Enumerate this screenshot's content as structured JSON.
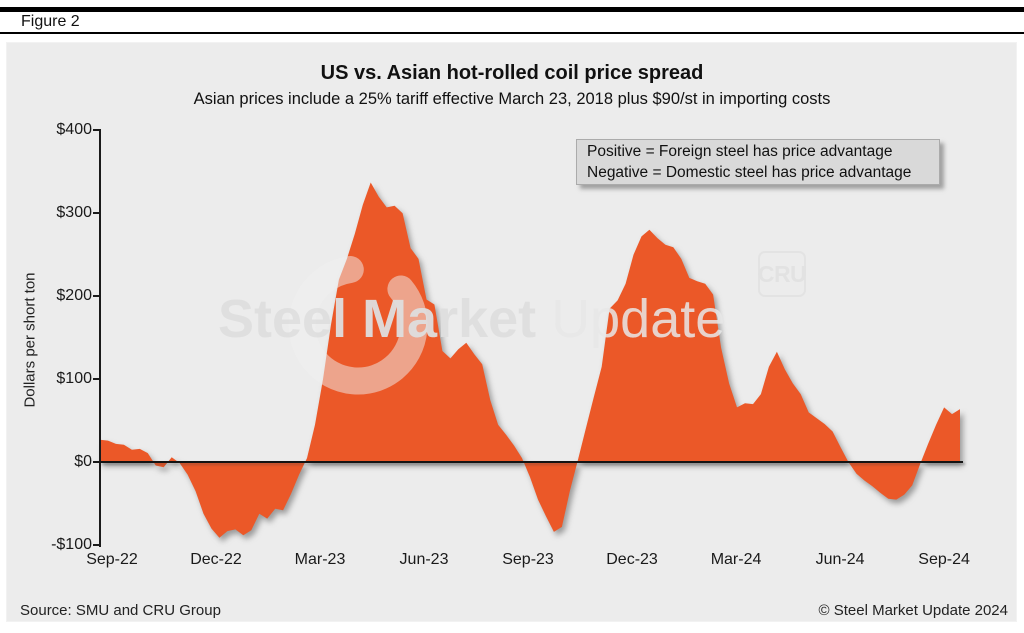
{
  "figure_label": "Figure 2",
  "chart": {
    "title": "US vs. Asian hot-rolled coil price spread",
    "subtitle": "Asian prices include a 25% tariff effective March 23, 2018 plus $90/st in importing costs",
    "ylabel": "Dollars per short ton",
    "annotation_line1": "Positive = Foreign steel has price advantage",
    "annotation_line2": "Negative = Domestic steel has price advantage"
  },
  "watermark": {
    "bold_part": "Steel Market ",
    "light_part": "Update",
    "badge": "CRU"
  },
  "footer": {
    "source": "Source: SMU and CRU Group",
    "copyright": "© Steel Market Update 2024"
  },
  "colors": {
    "area": "#EB5828",
    "panel_bg": "#ECECEC",
    "annotation_bg": "#D9D9D9",
    "axis": "#1a1a1a"
  },
  "chart_data": {
    "type": "area",
    "title": "US vs. Asian hot-rolled coil price spread",
    "subtitle": "Asian prices include a 25% tariff effective March 23, 2018 plus $90/st in importing costs",
    "xlabel": "",
    "ylabel": "Dollars per short ton",
    "ylim": [
      -100,
      400
    ],
    "baseline": 0,
    "grid": false,
    "legend": null,
    "frequency": "weekly",
    "x_range": [
      "late Aug 2022",
      "mid Oct 2024"
    ],
    "y_ticks": [
      {
        "label": "$400",
        "value": 400
      },
      {
        "label": "$300",
        "value": 300
      },
      {
        "label": "$200",
        "value": 200
      },
      {
        "label": "$100",
        "value": 100
      },
      {
        "label": "$0",
        "value": 0
      },
      {
        "label": "-$100",
        "value": -100
      }
    ],
    "x_ticks": [
      {
        "label": "Sep-22",
        "month_offset": 0
      },
      {
        "label": "Dec-22",
        "month_offset": 3
      },
      {
        "label": "Mar-23",
        "month_offset": 6
      },
      {
        "label": "Jun-23",
        "month_offset": 9
      },
      {
        "label": "Sep-23",
        "month_offset": 12
      },
      {
        "label": "Dec-23",
        "month_offset": 15
      },
      {
        "label": "Mar-24",
        "month_offset": 18
      },
      {
        "label": "Jun-24",
        "month_offset": 21
      },
      {
        "label": "Sep-24",
        "month_offset": 24
      }
    ],
    "values": [
      27,
      26,
      22,
      21,
      15,
      16,
      11,
      -4,
      -6,
      6,
      -1,
      -15,
      -35,
      -62,
      -80,
      -91,
      -83,
      -81,
      -88,
      -82,
      -62,
      -68,
      -56,
      -58,
      -38,
      -15,
      5,
      45,
      100,
      165,
      220,
      245,
      275,
      310,
      337,
      320,
      307,
      309,
      300,
      258,
      245,
      196,
      190,
      134,
      125,
      136,
      144,
      130,
      118,
      75,
      45,
      33,
      20,
      5,
      -18,
      -45,
      -65,
      -84,
      -78,
      -35,
      2,
      40,
      78,
      115,
      185,
      195,
      215,
      250,
      272,
      280,
      270,
      262,
      259,
      245,
      222,
      218,
      215,
      202,
      138,
      95,
      66,
      71,
      70,
      82,
      115,
      133,
      112,
      95,
      82,
      60,
      53,
      46,
      37,
      18,
      0,
      -14,
      -22,
      -29,
      -37,
      -44,
      -45,
      -39,
      -28,
      -2,
      22,
      45,
      66,
      58,
      64
    ]
  }
}
